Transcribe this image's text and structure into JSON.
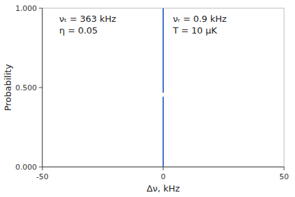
{
  "chart_data": {
    "type": "spike",
    "xlabel": "Δν, kHz",
    "ylabel": "Probability",
    "series": [
      {
        "type": "spike",
        "x": [
          0.0
        ],
        "values": [
          1.0
        ],
        "color": "#4472c4"
      },
      {
        "type": "scatter",
        "x": [
          0.0
        ],
        "values": [
          0.455
        ],
        "color": "white",
        "marker": "circle"
      }
    ],
    "xlim": [
      -50,
      50
    ],
    "ylim": [
      0.0,
      1.0
    ],
    "xticks": [
      -50,
      0,
      50
    ],
    "yticks": [
      {
        "value": 0.0,
        "label": "0.000"
      },
      {
        "value": 0.5,
        "label": "0.500"
      },
      {
        "value": 1.0,
        "label": "1.000"
      }
    ],
    "grid": false,
    "annotations": [
      {
        "lines": [
          "νₜ = 363 kHz",
          "η = 0.05"
        ]
      },
      {
        "lines": [
          "νᵣ = 0.9 kHz",
          "T = 10 μK"
        ]
      }
    ]
  }
}
